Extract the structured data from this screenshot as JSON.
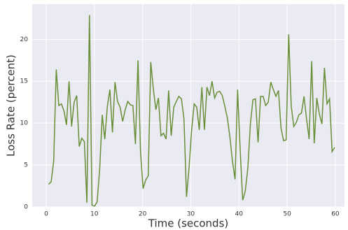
{
  "chart_data": {
    "type": "line",
    "xlabel": "Time (seconds)",
    "ylabel": "Loss Rate (percent)",
    "xlim": [
      -2.9,
      61.9
    ],
    "ylim": [
      0,
      24.2
    ],
    "xticks": [
      0,
      10,
      20,
      30,
      40,
      50,
      60
    ],
    "yticks": [
      0,
      5,
      10,
      15,
      20
    ],
    "grid": true,
    "series": [
      {
        "color": "#688f37",
        "x": [
          0.5,
          1.03,
          1.56,
          2.09,
          2.62,
          3.15,
          3.68,
          4.21,
          4.74,
          5.27,
          5.8,
          6.33,
          6.86,
          7.39,
          7.92,
          8.45,
          8.98,
          9.51,
          10.04,
          10.57,
          11.1,
          11.63,
          12.16,
          12.69,
          13.22,
          13.75,
          14.28,
          14.81,
          15.34,
          15.87,
          16.4,
          16.93,
          17.46,
          17.99,
          18.52,
          19.05,
          19.58,
          20.11,
          20.64,
          21.17,
          21.7,
          22.23,
          22.76,
          23.29,
          23.82,
          24.35,
          24.88,
          25.41,
          25.94,
          26.47,
          27.0,
          27.53,
          28.06,
          28.59,
          29.12,
          29.65,
          30.18,
          30.71,
          31.24,
          31.77,
          32.3,
          32.83,
          33.36,
          33.89,
          34.42,
          34.95,
          35.48,
          36.01,
          36.54,
          37.07,
          37.6,
          38.13,
          38.66,
          39.19,
          39.72,
          40.25,
          40.78,
          41.31,
          41.84,
          42.37,
          42.9,
          43.43,
          43.96,
          44.49,
          45.02,
          45.55,
          46.08,
          46.61,
          47.14,
          47.67,
          48.2,
          48.73,
          49.26,
          49.79,
          50.32,
          50.85,
          51.38,
          51.91,
          52.44,
          52.97,
          53.5,
          54.03,
          54.56,
          55.09,
          55.62,
          56.15,
          56.68,
          57.21,
          57.74,
          58.27,
          58.8,
          59.33,
          59.86
        ],
        "values": [
          2.7,
          3,
          5.5,
          16.4,
          12.1,
          12.3,
          11.5,
          9.8,
          15,
          9.6,
          12.5,
          13.3,
          7.2,
          8.2,
          7.8,
          0.5,
          22.9,
          0.2,
          0.1,
          0.6,
          4.5,
          11,
          8.1,
          12,
          14,
          8.9,
          14.9,
          12.6,
          11.9,
          10.2,
          11.6,
          12.6,
          12.2,
          12.1,
          7.5,
          17.5,
          6.5,
          2.2,
          3.2,
          3.7,
          17.3,
          14.1,
          11.6,
          13,
          8.5,
          8.8,
          8.1,
          13.9,
          8.5,
          11.9,
          12.6,
          13.2,
          12.9,
          10.5,
          1.2,
          4.7,
          9.2,
          12.3,
          11.9,
          9.2,
          14.3,
          9.2,
          14.3,
          13.3,
          15,
          13,
          13.7,
          13.8,
          13.3,
          12,
          10.6,
          8.3,
          5.4,
          3.3,
          14,
          6.8,
          0.8,
          1.9,
          4.6,
          9.9,
          12.8,
          12.9,
          7.7,
          13.2,
          13.2,
          12.1,
          12.5,
          14.9,
          14,
          13.2,
          13.9,
          9.4,
          7.9,
          8,
          20.6,
          12,
          9.6,
          10.1,
          11,
          11.2,
          13.2,
          10.5,
          8.1,
          17.4,
          7.6,
          13,
          11.1,
          9.9,
          16.6,
          12.3,
          12.9,
          6.6,
          7.1
        ]
      }
    ]
  }
}
